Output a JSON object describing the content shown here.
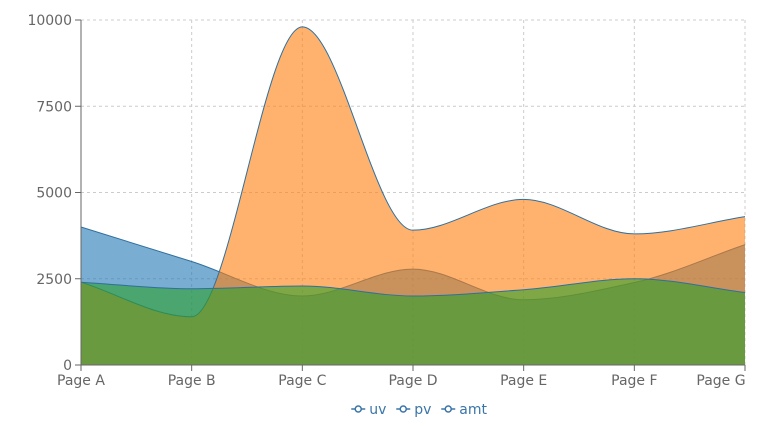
{
  "chart_data": {
    "type": "area",
    "categories": [
      "Page A",
      "Page B",
      "Page C",
      "Page D",
      "Page E",
      "Page F",
      "Page G"
    ],
    "series": [
      {
        "name": "uv",
        "values": [
          4000,
          3000,
          2000,
          2780,
          1890,
          2390,
          3490
        ],
        "fill": "#1f77b4",
        "stroke": "#2f6f9f"
      },
      {
        "name": "pv",
        "values": [
          2400,
          1398,
          9800,
          3908,
          4800,
          3800,
          4300
        ],
        "fill": "#ff7f0e",
        "stroke": "#2f6f9f"
      },
      {
        "name": "amt",
        "values": [
          2400,
          2210,
          2290,
          2000,
          2181,
          2500,
          2100
        ],
        "fill": "#2ca02c",
        "stroke": "#2f6f9f"
      }
    ],
    "ylim": [
      0,
      10000
    ],
    "yticks": [
      "0",
      "2500",
      "5000",
      "7500",
      "10000"
    ],
    "ytick_values": [
      0,
      2500,
      5000,
      7500,
      10000
    ],
    "grid": true,
    "legend": "bottom-center",
    "legend_color": "#3a75a8",
    "title": "",
    "xlabel": "",
    "ylabel": ""
  }
}
